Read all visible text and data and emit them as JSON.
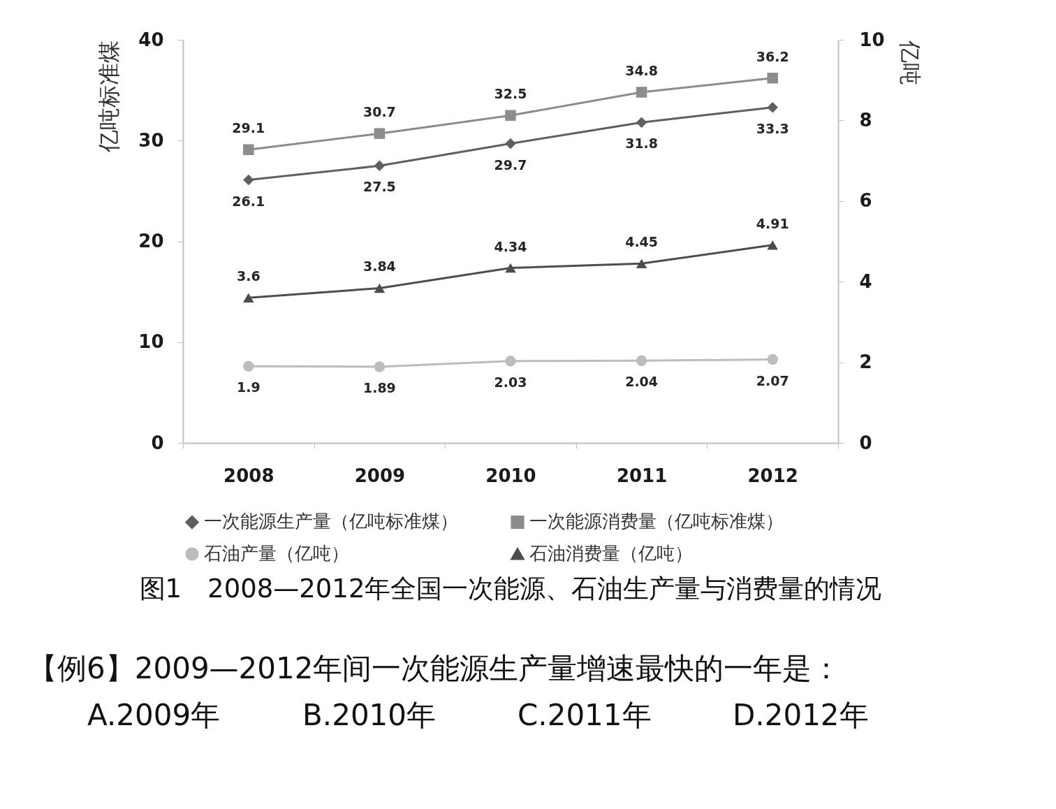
{
  "chart_data": {
    "type": "line",
    "title": "图1　2008—2012年全国一次能源、石油生产量与消费量的情况",
    "categories": [
      "2008",
      "2009",
      "2010",
      "2011",
      "2012"
    ],
    "ylabel": "亿吨标准煤",
    "y2label": "亿吨",
    "ylim": [
      0,
      40
    ],
    "yticks": [
      0,
      10,
      20,
      30,
      40
    ],
    "y2lim": [
      0,
      10
    ],
    "y2ticks": [
      0,
      2,
      4,
      6,
      8,
      10
    ],
    "series": [
      {
        "name": "一次能源生产量（亿吨标准煤）",
        "color": "#5f5f5f",
        "marker": "diamond",
        "values": [
          26.1,
          27.5,
          29.7,
          31.8,
          33.3
        ]
      },
      {
        "name": "一次能源消费量（亿吨标准煤）",
        "color": "#8c8c8c",
        "marker": "square",
        "values": [
          29.1,
          30.7,
          32.5,
          34.8,
          36.2
        ]
      },
      {
        "name": "石油产量（亿吨）",
        "color": "#bdbdbd",
        "marker": "circle",
        "axis": "y2",
        "values": [
          1.9,
          1.89,
          2.03,
          2.04,
          2.07
        ]
      },
      {
        "name": "石油消费量（亿吨）",
        "color": "#4d4d4d",
        "marker": "triangle",
        "axis": "y2",
        "values": [
          3.6,
          3.84,
          4.34,
          4.45,
          4.91
        ]
      }
    ],
    "data_labels": true,
    "grid": false,
    "legend": "bottom",
    "line_style": "solid",
    "annotations": [
      "【例6】2009—2012年间一次能源生产量增速最快的一年是：",
      "A.2009年",
      "B.2010年",
      "C.2011年",
      "D.2012年"
    ]
  }
}
